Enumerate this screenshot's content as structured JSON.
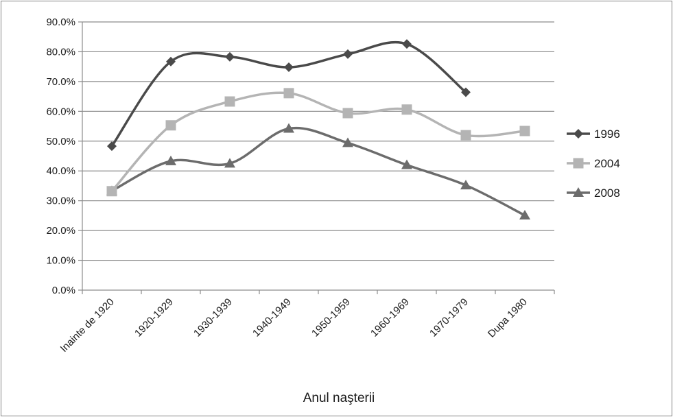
{
  "chart_data": {
    "type": "line",
    "title": "",
    "xlabel": "Anul naşterii",
    "ylabel": "",
    "categories": [
      "Inainte de 1920",
      "1920-1929",
      "1930-1939",
      "1940-1949",
      "1950-1959",
      "1960-1969",
      "1970-1979",
      "Dupa 1980"
    ],
    "yticks": [
      "0.0%",
      "10.0%",
      "20.0%",
      "30.0%",
      "40.0%",
      "50.0%",
      "60.0%",
      "70.0%",
      "80.0%",
      "90.0%"
    ],
    "ylim": [
      0,
      90
    ],
    "grid": true,
    "smooth": true,
    "legend_position": "right",
    "series": [
      {
        "name": "1996",
        "marker": "diamond",
        "color": "#4a4a4a",
        "values": [
          48.3,
          76.7,
          78.3,
          74.8,
          79.2,
          82.6,
          66.4,
          null
        ]
      },
      {
        "name": "2004",
        "marker": "square",
        "color": "#b4b4b4",
        "values": [
          33.2,
          55.3,
          63.3,
          66.1,
          59.4,
          60.6,
          52.0,
          53.4
        ]
      },
      {
        "name": "2008",
        "marker": "triangle",
        "color": "#6c6c6c",
        "values": [
          33.3,
          43.3,
          42.5,
          54.2,
          49.4,
          42.0,
          35.2,
          25.1
        ]
      }
    ]
  }
}
